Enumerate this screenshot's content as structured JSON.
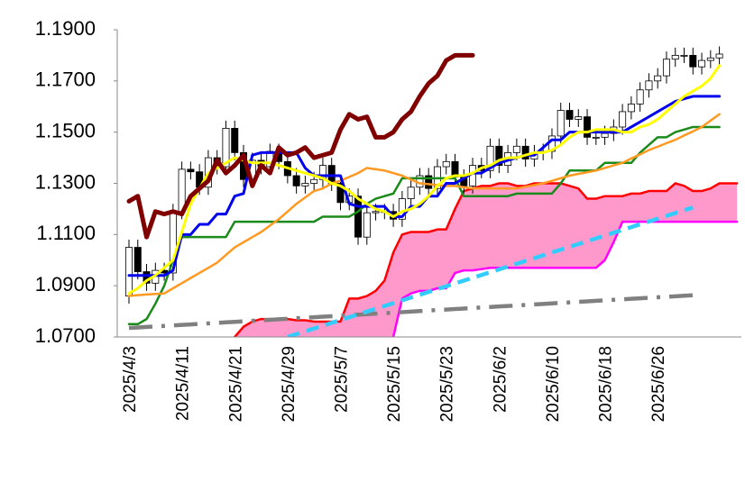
{
  "chart_data": {
    "type": "candlestick",
    "categories": [
      "2025/4/3",
      null,
      null,
      null,
      null,
      null,
      "2025/4/11",
      null,
      null,
      null,
      null,
      null,
      "2025/4/21",
      null,
      null,
      null,
      null,
      null,
      "2025/4/29",
      null,
      null,
      null,
      null,
      null,
      "2025/5/7",
      null,
      null,
      null,
      null,
      null,
      "2025/5/15",
      null,
      null,
      null,
      null,
      null,
      "2025/5/23",
      null,
      null,
      null,
      null,
      null,
      "2025/6/2",
      null,
      null,
      null,
      null,
      null,
      "2025/6/10",
      null,
      null,
      null,
      null,
      null,
      "2025/6/18",
      null,
      null,
      null,
      null,
      null,
      "2025/6/26",
      null,
      null,
      null,
      null,
      null,
      null,
      null,
      null,
      null
    ],
    "ylim": [
      1.07,
      1.19
    ],
    "yticks": [
      {
        "value": 1.07,
        "label": "1.0700"
      },
      {
        "value": 1.09,
        "label": "1.0900"
      },
      {
        "value": 1.11,
        "label": "1.1100"
      },
      {
        "value": 1.13,
        "label": "1.1300"
      },
      {
        "value": 1.15,
        "label": "1.1500"
      },
      {
        "value": 1.17,
        "label": "1.1700"
      },
      {
        "value": 1.19,
        "label": "1.1900"
      }
    ],
    "grid": false,
    "candles": {
      "up_color": "#ffffff",
      "down_color": "#000000",
      "open": [
        1.086,
        1.105,
        1.0955,
        1.091,
        1.096,
        1.095,
        1.119,
        1.1355,
        1.1345,
        1.1285,
        1.14,
        1.1365,
        1.1515,
        1.142,
        1.1315,
        1.139,
        1.1365,
        1.1425,
        1.1385,
        1.133,
        1.129,
        1.13,
        1.1315,
        1.137,
        1.13,
        1.1225,
        1.125,
        1.109,
        1.1185,
        1.119,
        1.119,
        1.116,
        1.124,
        1.1285,
        1.133,
        1.128,
        1.1365,
        1.1385,
        1.1325,
        1.129,
        1.137,
        1.135,
        1.1445,
        1.137,
        1.142,
        1.1445,
        1.1395,
        1.142,
        1.1425,
        1.1485,
        1.1585,
        1.155,
        1.156,
        1.148,
        1.148,
        1.1495,
        1.152,
        1.158,
        1.161,
        1.1665,
        1.17,
        1.172,
        1.1785,
        1.18,
        1.18,
        1.1755,
        1.178,
        1.179
      ],
      "high": [
        1.108,
        1.108,
        1.0985,
        1.099,
        1.099,
        1.122,
        1.1385,
        1.1385,
        1.1375,
        1.143,
        1.143,
        1.1545,
        1.1545,
        1.145,
        1.142,
        1.142,
        1.1455,
        1.1455,
        1.1415,
        1.136,
        1.133,
        1.1345,
        1.14,
        1.14,
        1.133,
        1.128,
        1.128,
        1.1215,
        1.122,
        1.122,
        1.122,
        1.127,
        1.1315,
        1.136,
        1.136,
        1.1395,
        1.1415,
        1.1415,
        1.1355,
        1.14,
        1.14,
        1.1475,
        1.1475,
        1.145,
        1.1475,
        1.1475,
        1.145,
        1.1455,
        1.1515,
        1.1615,
        1.1615,
        1.159,
        1.159,
        1.151,
        1.1525,
        1.155,
        1.161,
        1.164,
        1.1695,
        1.173,
        1.175,
        1.1815,
        1.183,
        1.183,
        1.183,
        1.181,
        1.182,
        1.1835
      ],
      "low": [
        1.083,
        1.0925,
        1.088,
        1.088,
        1.092,
        1.092,
        1.116,
        1.1315,
        1.1255,
        1.1255,
        1.1335,
        1.1335,
        1.139,
        1.1285,
        1.1285,
        1.1335,
        1.1335,
        1.1355,
        1.13,
        1.126,
        1.126,
        1.127,
        1.1285,
        1.127,
        1.1195,
        1.1195,
        1.106,
        1.106,
        1.1155,
        1.116,
        1.113,
        1.113,
        1.121,
        1.1255,
        1.125,
        1.125,
        1.1335,
        1.1295,
        1.126,
        1.126,
        1.132,
        1.132,
        1.134,
        1.134,
        1.139,
        1.1365,
        1.1365,
        1.139,
        1.1395,
        1.1455,
        1.152,
        1.152,
        1.145,
        1.145,
        1.145,
        1.1465,
        1.149,
        1.155,
        1.158,
        1.1635,
        1.167,
        1.169,
        1.1755,
        1.177,
        1.1725,
        1.1725,
        1.175,
        1.176
      ],
      "close": [
        1.105,
        1.0955,
        1.091,
        1.096,
        1.095,
        1.119,
        1.1355,
        1.1345,
        1.1285,
        1.14,
        1.1365,
        1.1515,
        1.142,
        1.1315,
        1.139,
        1.1365,
        1.1425,
        1.1385,
        1.133,
        1.129,
        1.13,
        1.1315,
        1.137,
        1.13,
        1.1225,
        1.125,
        1.109,
        1.1185,
        1.119,
        1.119,
        1.116,
        1.124,
        1.1285,
        1.133,
        1.128,
        1.1365,
        1.1385,
        1.1325,
        1.129,
        1.137,
        1.135,
        1.1445,
        1.137,
        1.142,
        1.1445,
        1.1395,
        1.142,
        1.1425,
        1.1485,
        1.1585,
        1.155,
        1.156,
        1.148,
        1.148,
        1.1495,
        1.152,
        1.158,
        1.161,
        1.1665,
        1.17,
        1.172,
        1.1785,
        1.18,
        1.18,
        1.1755,
        1.178,
        1.179,
        1.1805
      ]
    },
    "cloud": {
      "color": "#ff99cc",
      "span_a": {
        "color": "#ff0000",
        "values": [
          null,
          null,
          null,
          null,
          null,
          null,
          null,
          null,
          null,
          null,
          null,
          1.067,
          1.07,
          1.074,
          1.076,
          1.077,
          1.077,
          1.077,
          1.077,
          1.0765,
          1.0765,
          1.076,
          1.076,
          1.076,
          1.076,
          1.085,
          1.085,
          1.086,
          1.088,
          1.092,
          1.103,
          1.11,
          1.111,
          1.111,
          1.111,
          1.112,
          1.112,
          1.12,
          1.127,
          1.128,
          1.129,
          1.129,
          1.13,
          1.13,
          1.129,
          1.129,
          1.13,
          1.13,
          1.13,
          1.13,
          1.129,
          1.128,
          1.124,
          1.124,
          1.125,
          1.125,
          1.125,
          1.126,
          1.126,
          1.127,
          1.127,
          1.127,
          1.13,
          1.129,
          1.127,
          1.127,
          1.128,
          1.13,
          1.13,
          1.13
        ]
      },
      "span_b": {
        "color": "#ff00ff",
        "values": [
          null,
          null,
          null,
          null,
          null,
          null,
          null,
          null,
          null,
          null,
          null,
          1.06,
          1.06,
          1.06,
          1.06,
          1.06,
          1.06,
          1.06,
          1.06,
          1.06,
          1.06,
          1.06,
          1.06,
          1.06,
          1.06,
          1.06,
          1.06,
          1.06,
          1.06,
          1.06,
          1.07,
          1.085,
          1.087,
          1.088,
          1.088,
          1.089,
          1.089,
          1.095,
          1.096,
          1.096,
          1.0965,
          1.097,
          1.097,
          1.097,
          1.097,
          1.097,
          1.097,
          1.097,
          1.097,
          1.097,
          1.097,
          1.097,
          1.097,
          1.097,
          1.1,
          1.107,
          1.115,
          1.115,
          1.115,
          1.115,
          1.115,
          1.115,
          1.115,
          1.115,
          1.115,
          1.115,
          1.115,
          1.115,
          1.115,
          1.115
        ]
      }
    },
    "series": [
      {
        "color": "#808080",
        "dash": "dashdot",
        "values": [
          1.0735,
          1.0737,
          1.0739,
          1.0741,
          1.0743,
          1.0745,
          1.0747,
          1.0749,
          1.0751,
          1.0753,
          1.0755,
          1.0757,
          1.0759,
          1.0761,
          1.0763,
          1.0765,
          1.0767,
          1.0769,
          1.0771,
          1.0773,
          1.0775,
          1.0777,
          1.0779,
          1.0781,
          1.0783,
          1.0785,
          1.0787,
          1.0789,
          1.0791,
          1.0793,
          1.0795,
          1.0797,
          1.0799,
          1.0801,
          1.0803,
          1.0805,
          1.0807,
          1.0809,
          1.0811,
          1.0813,
          1.0815,
          1.0817,
          1.0819,
          1.0821,
          1.0823,
          1.0825,
          1.0827,
          1.0829,
          1.0831,
          1.0833,
          1.0835,
          1.0837,
          1.0839,
          1.0841,
          1.0843,
          1.0845,
          1.0847,
          1.0849,
          1.0851,
          1.0853,
          1.0855,
          1.0857,
          1.0859,
          1.0861,
          1.0863,
          null,
          null,
          null,
          null,
          null
        ]
      },
      {
        "color": "#33ccff",
        "dash": "dash",
        "values": [
          null,
          null,
          null,
          null,
          null,
          null,
          null,
          null,
          null,
          null,
          null,
          null,
          null,
          null,
          null,
          null,
          null,
          null,
          1.07,
          1.0711,
          1.0722,
          1.0733,
          1.0744,
          1.0755,
          1.0766,
          1.0777,
          1.0788,
          1.0799,
          1.081,
          1.0821,
          1.0832,
          1.0843,
          1.0854,
          1.0865,
          1.0876,
          1.0887,
          1.0898,
          1.0909,
          1.092,
          1.0931,
          1.0942,
          1.0953,
          1.0964,
          1.0975,
          1.0986,
          1.0997,
          1.1008,
          1.1019,
          1.103,
          1.1041,
          1.1052,
          1.1063,
          1.1074,
          1.1085,
          1.1096,
          1.1107,
          1.1118,
          1.1129,
          1.114,
          1.1151,
          1.1162,
          1.1173,
          1.1184,
          1.1195,
          1.1206,
          null,
          null,
          null,
          null,
          null
        ]
      },
      {
        "color": "#1a8a1a",
        "values": [
          1.075,
          1.075,
          1.077,
          1.083,
          1.09,
          1.1,
          1.109,
          1.109,
          1.109,
          1.109,
          1.109,
          1.109,
          1.115,
          1.115,
          1.115,
          1.115,
          1.115,
          1.115,
          1.115,
          1.115,
          1.115,
          1.115,
          1.117,
          1.117,
          1.117,
          1.117,
          1.119,
          1.122,
          1.124,
          1.125,
          1.126,
          1.132,
          1.132,
          1.132,
          1.132,
          1.132,
          1.132,
          1.132,
          1.125,
          1.125,
          1.125,
          1.125,
          1.125,
          1.125,
          1.126,
          1.126,
          1.126,
          1.126,
          1.126,
          1.13,
          1.135,
          1.135,
          1.135,
          1.135,
          1.138,
          1.138,
          1.138,
          1.138,
          1.142,
          1.145,
          1.148,
          1.148,
          1.15,
          1.151,
          1.152,
          1.152,
          1.152,
          1.152,
          null,
          null
        ]
      },
      {
        "color": "#ff9922",
        "values": [
          1.086,
          1.0863,
          1.0866,
          1.0868,
          1.087,
          1.089,
          1.091,
          1.093,
          1.095,
          1.097,
          1.099,
          1.102,
          1.105,
          1.107,
          1.109,
          1.111,
          1.1135,
          1.116,
          1.119,
          1.122,
          1.1245,
          1.127,
          1.128,
          1.13,
          1.131,
          1.1325,
          1.134,
          1.136,
          1.1355,
          1.135,
          1.134,
          1.133,
          1.1315,
          1.13,
          1.1297,
          1.1293,
          1.129,
          1.129,
          1.1285,
          1.128,
          1.128,
          1.128,
          1.128,
          1.128,
          1.128,
          1.1287,
          1.1293,
          1.13,
          1.131,
          1.132,
          1.133,
          1.1337,
          1.1343,
          1.135,
          1.136,
          1.137,
          1.138,
          1.1397,
          1.1413,
          1.143,
          1.1443,
          1.1457,
          1.147,
          1.1487,
          1.1503,
          1.152,
          1.1545,
          1.157,
          null,
          null
        ]
      },
      {
        "color": "#0000ee",
        "values": [
          1.094,
          1.094,
          1.094,
          1.094,
          1.094,
          1.096,
          1.11,
          1.11,
          1.114,
          1.114,
          1.118,
          1.118,
          1.125,
          1.126,
          1.141,
          1.142,
          1.142,
          1.142,
          1.142,
          1.142,
          1.136,
          1.133,
          1.133,
          1.133,
          1.133,
          1.122,
          1.121,
          1.121,
          1.121,
          1.121,
          1.117,
          1.117,
          1.121,
          1.121,
          1.125,
          1.125,
          1.13,
          1.13,
          1.132,
          1.134,
          1.134,
          1.136,
          1.138,
          1.139,
          1.14,
          1.141,
          1.141,
          1.144,
          1.147,
          1.147,
          1.15,
          1.15,
          1.15,
          1.15,
          1.15,
          1.15,
          1.15,
          1.152,
          1.154,
          1.156,
          1.158,
          1.16,
          1.162,
          1.163,
          1.164,
          1.164,
          1.164,
          1.164,
          null,
          null
        ]
      },
      {
        "color": "#ffff00",
        "values": [
          1.087,
          1.089,
          1.092,
          1.094,
          1.097,
          1.1,
          1.111,
          1.122,
          1.128,
          1.134,
          1.136,
          1.138,
          1.14,
          1.139,
          1.138,
          1.138,
          1.138,
          1.137,
          1.136,
          1.135,
          1.134,
          1.133,
          1.132,
          1.13,
          1.129,
          1.127,
          1.124,
          1.122,
          1.12,
          1.119,
          1.117,
          1.119,
          1.12,
          1.122,
          1.125,
          1.129,
          1.132,
          1.133,
          1.133,
          1.134,
          1.136,
          1.137,
          1.139,
          1.14,
          1.14,
          1.141,
          1.142,
          1.142,
          1.143,
          1.145,
          1.148,
          1.15,
          1.15,
          1.151,
          1.151,
          1.151,
          1.15,
          1.15,
          1.152,
          1.153,
          1.155,
          1.158,
          1.161,
          1.164,
          1.166,
          1.168,
          1.171,
          1.176,
          null,
          null
        ]
      },
      {
        "color": "#800000",
        "values": [
          1.123,
          1.125,
          1.109,
          1.119,
          1.118,
          1.119,
          1.118,
          1.125,
          1.128,
          1.131,
          1.139,
          1.134,
          1.137,
          1.141,
          1.129,
          1.137,
          1.134,
          1.144,
          1.141,
          1.142,
          1.144,
          1.14,
          1.141,
          1.142,
          1.151,
          1.157,
          1.155,
          1.156,
          1.148,
          1.148,
          1.15,
          1.155,
          1.158,
          1.164,
          1.169,
          1.172,
          1.178,
          1.18,
          1.18,
          1.18,
          null,
          null,
          null,
          null,
          null,
          null,
          null,
          null,
          null,
          null,
          null,
          null,
          null,
          null,
          null,
          null,
          null,
          null,
          null,
          null,
          null,
          null,
          null,
          null,
          null,
          null,
          null,
          null,
          null,
          null
        ]
      }
    ]
  }
}
